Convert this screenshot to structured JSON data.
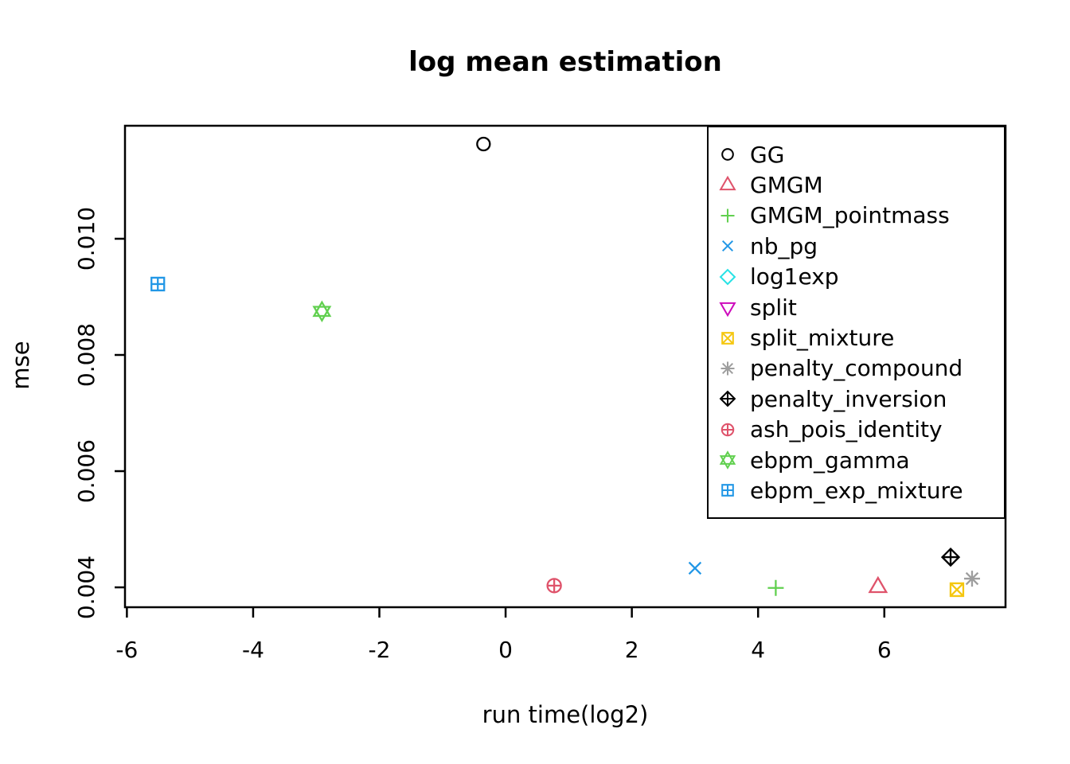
{
  "page": {
    "background": "#ffffff",
    "text_color": "#000000"
  },
  "chart_data": {
    "type": "scatter",
    "title": "log mean estimation",
    "xlabel": "run time(log2)",
    "ylabel": "mse",
    "xlim": [
      -6.03,
      7.92
    ],
    "ylim": [
      0.003658,
      0.011945
    ],
    "xticks": [
      -6,
      -4,
      -2,
      0,
      2,
      4,
      6
    ],
    "xtick_labels": [
      "-6",
      "-4",
      "-2",
      "0",
      "2",
      "4",
      "6"
    ],
    "yticks": [
      0.004,
      0.006,
      0.008,
      0.01
    ],
    "ytick_labels": [
      "0.004",
      "0.006",
      "0.008",
      "0.010"
    ],
    "grid": false,
    "legend_position": "topright",
    "series": [
      {
        "name": "GG",
        "marker": "circle",
        "pch": 1,
        "color": "#000000",
        "points": [
          [
            -0.35,
            0.01163
          ]
        ]
      },
      {
        "name": "GMGM",
        "marker": "triangle-up",
        "pch": 2,
        "color": "#DF536B",
        "points": [
          [
            5.9,
            0.004
          ]
        ]
      },
      {
        "name": "GMGM_pointmass",
        "marker": "plus",
        "pch": 3,
        "color": "#61D04F",
        "points": [
          [
            4.28,
            0.00399
          ]
        ]
      },
      {
        "name": "nb_pg",
        "marker": "x",
        "pch": 4,
        "color": "#2297E6",
        "points": [
          [
            3.0,
            0.00433
          ]
        ]
      },
      {
        "name": "log1exp",
        "marker": "diamond",
        "pch": 5,
        "color": "#28E2E5",
        "points": []
      },
      {
        "name": "split",
        "marker": "triangle-down",
        "pch": 6,
        "color": "#CD0BBC",
        "points": []
      },
      {
        "name": "split_mixture",
        "marker": "square-x",
        "pch": 7,
        "color": "#F5C710",
        "points": [
          [
            7.15,
            0.00396
          ]
        ]
      },
      {
        "name": "penalty_compound",
        "marker": "asterisk",
        "pch": 8,
        "color": "#9E9E9E",
        "points": [
          [
            7.39,
            0.00415
          ]
        ]
      },
      {
        "name": "penalty_inversion",
        "marker": "diamond-plus",
        "pch": 9,
        "color": "#000000",
        "points": [
          [
            7.05,
            0.00452
          ]
        ]
      },
      {
        "name": "ash_pois_identity",
        "marker": "circle-plus",
        "pch": 10,
        "color": "#DF536B",
        "points": [
          [
            0.77,
            0.00403
          ]
        ]
      },
      {
        "name": "ebpm_gamma",
        "marker": "star-of-david",
        "pch": 11,
        "color": "#61D04F",
        "points": [
          [
            -2.91,
            0.00875
          ]
        ]
      },
      {
        "name": "ebpm_exp_mixture",
        "marker": "square-plus",
        "pch": 12,
        "color": "#2297E6",
        "points": [
          [
            -5.51,
            0.00922
          ]
        ]
      }
    ]
  }
}
